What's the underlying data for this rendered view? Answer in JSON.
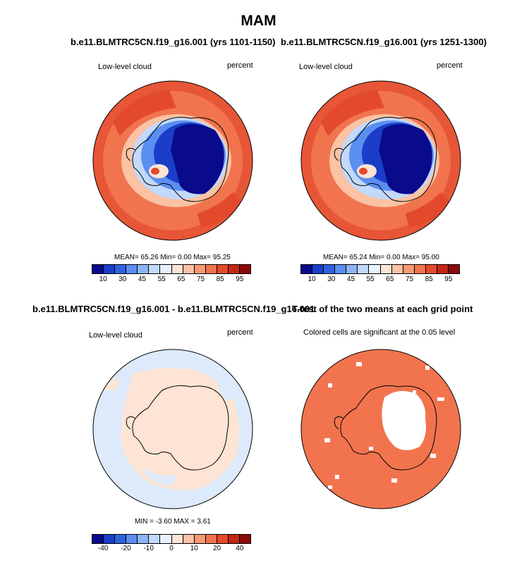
{
  "title": "MAM",
  "panels": {
    "p1": {
      "title": "b.e11.BLMTRC5CN.f19_g16.001 (yrs 1101-1150)",
      "left_label": "Low-level cloud",
      "right_label": "percent",
      "stats": "MEAN= 65.26  Min=  0.00  Max= 95.25"
    },
    "p2": {
      "title": "b.e11.BLMTRC5CN.f19_g16.001 (yrs 1251-1300)",
      "left_label": "Low-level cloud",
      "right_label": "percent",
      "stats": "MEAN= 65.24  Min=  0.00  Max= 95.00"
    },
    "p3": {
      "title": "b.e11.BLMTRC5CN.f19_g16.001 - b.e11.BLMTRC5CN.f19_g16.001",
      "left_label": "Low-level cloud",
      "right_label": "percent",
      "stats": "MIN =  -3.60 MAX =  3.61"
    },
    "p4": {
      "title": "T-test of the two means at each grid point",
      "subtitle": "Colored cells are significant at the 0.05 level"
    }
  },
  "colorbars": {
    "abs": {
      "colors": [
        "#0a0a8c",
        "#1a3ec8",
        "#2e63e0",
        "#5a8ef0",
        "#8db4f7",
        "#c2d9fb",
        "#e8f2fe",
        "#fde4d4",
        "#fbc2a4",
        "#f89a76",
        "#f1744e",
        "#e34a2c",
        "#c42716",
        "#8c0a0a"
      ],
      "ticks": [
        "10",
        "30",
        "45",
        "55",
        "65",
        "75",
        "85",
        "95"
      ]
    },
    "diff": {
      "colors": [
        "#0a0a8c",
        "#1a3ec8",
        "#2e63e0",
        "#5a8ef0",
        "#8db4f7",
        "#c2d9fb",
        "#e8f2fe",
        "#fde4d4",
        "#fbc2a4",
        "#f89a76",
        "#f1744e",
        "#e34a2c",
        "#c42716",
        "#8c0a0a"
      ],
      "ticks": [
        "-40",
        "-20",
        "-10",
        "0",
        "10",
        "20",
        "40"
      ]
    }
  }
}
